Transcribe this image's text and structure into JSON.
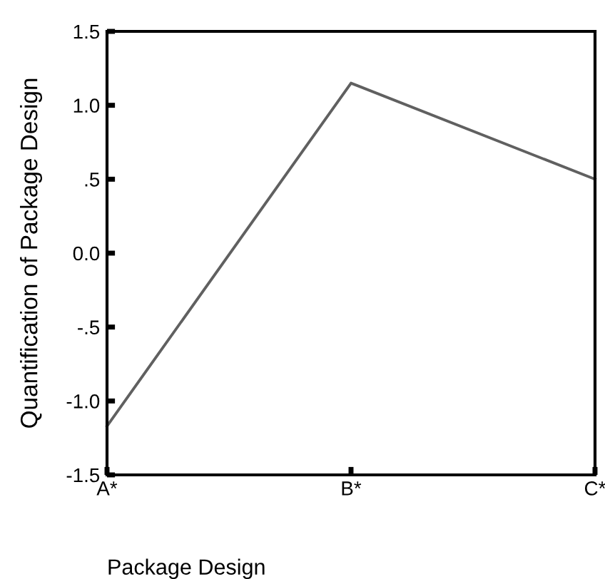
{
  "chart_data": {
    "type": "line",
    "xlabel": "Package Design",
    "ylabel": "Quantification of Package Design",
    "categories": [
      "A*",
      "B*",
      "C*"
    ],
    "series": [
      {
        "color": "#606060",
        "values": [
          -1.17,
          1.15,
          0.5
        ]
      }
    ],
    "ylim": [
      -1.5,
      1.5
    ],
    "yticks": [
      {
        "value": -1.5,
        "label": "-1.5"
      },
      {
        "value": -1.0,
        "label": "-1.0"
      },
      {
        "value": -0.5,
        "label": "-.5"
      },
      {
        "value": 0.0,
        "label": "0.0"
      },
      {
        "value": 0.5,
        "label": ".5"
      },
      {
        "value": 1.0,
        "label": "1.0"
      },
      {
        "value": 1.5,
        "label": "1.5"
      }
    ],
    "grid": false,
    "legend": false,
    "marker": "none",
    "line_style": "solid"
  }
}
